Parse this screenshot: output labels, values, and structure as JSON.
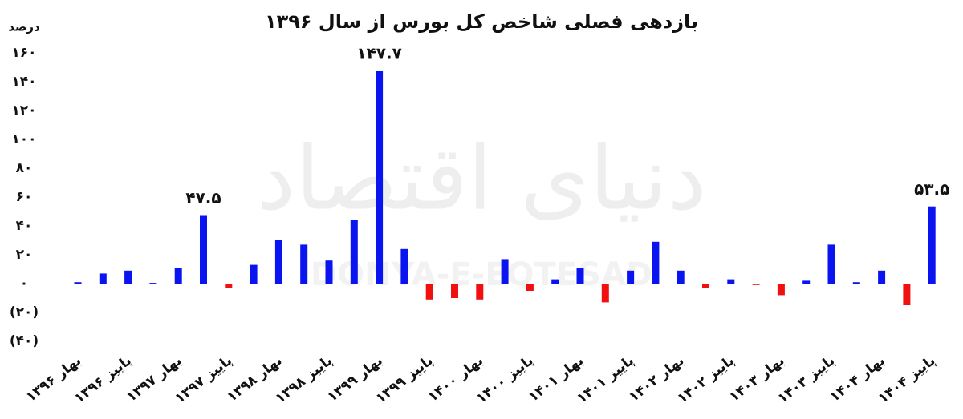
{
  "chart_data": {
    "type": "bar",
    "title": "بازدهی فصلی شاخص کل بورس از سال ۱۳۹۶",
    "y_axis_label": "درصد",
    "watermark": "دنیای اقتصاد",
    "watermark_latin": "DONYA-E-EQTESAD",
    "categories": [
      "بهار ۱۳۹۶",
      null,
      "پاییز ۱۳۹۶",
      null,
      "بهار ۱۳۹۷",
      null,
      "پاییز ۱۳۹۷",
      null,
      "بهار ۱۳۹۸",
      null,
      "پاییز ۱۳۹۸",
      null,
      "بهار ۱۳۹۹",
      null,
      "پاییز ۱۳۹۹",
      null,
      "بهار ۱۴۰۰",
      null,
      "پاییز ۱۴۰۰",
      null,
      "بهار ۱۴۰۱",
      null,
      "پاییز ۱۴۰۱",
      null,
      "بهار ۱۴۰۲",
      null,
      "پاییز ۱۴۰۲",
      null,
      "بهار ۱۴۰۳",
      null,
      "پاییز ۱۴۰۳",
      null,
      "بهار ۱۴۰۴",
      null,
      "پاییز ۱۴۰۴"
    ],
    "values": [
      1,
      7,
      9,
      0.5,
      11,
      47.5,
      -3,
      13,
      30,
      27,
      16,
      44,
      147.7,
      24,
      -11,
      -10,
      -11,
      17,
      -5,
      3,
      11,
      -13,
      9,
      29,
      9,
      -3,
      3,
      -1,
      -8,
      2,
      27,
      1,
      9,
      -15,
      53.5
    ],
    "value_labels": [
      null,
      null,
      null,
      null,
      null,
      "۴۷.۵",
      null,
      null,
      null,
      null,
      null,
      null,
      "۱۴۷.۷",
      null,
      null,
      null,
      null,
      null,
      null,
      null,
      null,
      null,
      null,
      null,
      null,
      null,
      null,
      null,
      null,
      null,
      null,
      null,
      null,
      null,
      "۵۳.۵"
    ],
    "positive_color": "#0a14f0",
    "negative_color": "#f01010",
    "ylim": [
      -40,
      160
    ],
    "yticks": [
      {
        "value": -40,
        "label": "(۴۰)"
      },
      {
        "value": -20,
        "label": "(۲۰)"
      },
      {
        "value": 0,
        "label": "۰"
      },
      {
        "value": 20,
        "label": "۲۰"
      },
      {
        "value": 40,
        "label": "۴۰"
      },
      {
        "value": 60,
        "label": "۶۰"
      },
      {
        "value": 80,
        "label": "۸۰"
      },
      {
        "value": 100,
        "label": "۱۰۰"
      },
      {
        "value": 120,
        "label": "۱۲۰"
      },
      {
        "value": 140,
        "label": "۱۴۰"
      },
      {
        "value": 160,
        "label": "۱۶۰"
      }
    ],
    "grid": false
  }
}
